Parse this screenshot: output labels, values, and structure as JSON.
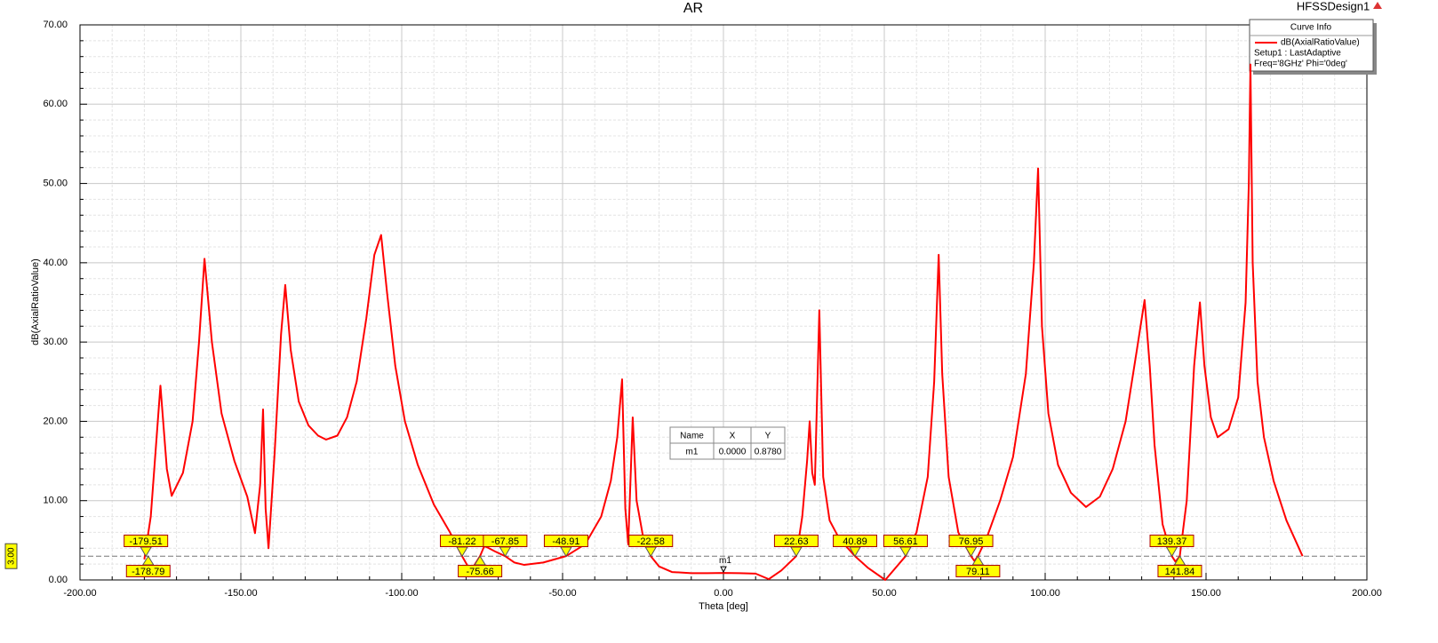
{
  "chart_data": {
    "type": "line",
    "title": "AR",
    "design_name": "HFSSDesign1",
    "x_label": "Theta [deg]",
    "y_label": "dB(AxialRatioValue)",
    "xlim": [
      -200,
      200
    ],
    "ylim": [
      0,
      70
    ],
    "xticks": [
      {
        "value": -200,
        "label": "-200.00"
      },
      {
        "value": -150,
        "label": "-150.00"
      },
      {
        "value": -100,
        "label": "-100.00"
      },
      {
        "value": -50,
        "label": "-50.00"
      },
      {
        "value": 0,
        "label": "0.00"
      },
      {
        "value": 50,
        "label": "50.00"
      },
      {
        "value": 100,
        "label": "100.00"
      },
      {
        "value": 150,
        "label": "150.00"
      },
      {
        "value": 200,
        "label": "200.00"
      }
    ],
    "yticks": [
      {
        "value": 0,
        "label": "0.00"
      },
      {
        "value": 10,
        "label": "10.00"
      },
      {
        "value": 20,
        "label": "20.00"
      },
      {
        "value": 30,
        "label": "30.00"
      },
      {
        "value": 40,
        "label": "40.00"
      },
      {
        "value": 50,
        "label": "50.00"
      },
      {
        "value": 60,
        "label": "60.00"
      },
      {
        "value": 70,
        "label": "70.00"
      }
    ],
    "grid": true,
    "legend_title": "Curve Info",
    "legend_lines": [
      "Setup1 : LastAdaptive",
      "Freq='8GHz' Phi='0deg'"
    ],
    "x": [
      -180,
      -178,
      -175,
      -173,
      -171.5,
      -168,
      -165,
      -163,
      -161.3,
      -159,
      -156,
      -152,
      -148,
      -145.6,
      -144,
      -143.1,
      -142.3,
      -141.4,
      -139.5,
      -137.5,
      -136.2,
      -134.5,
      -132,
      -129,
      -126,
      -123.5,
      -120,
      -117,
      -114,
      -111,
      -108.5,
      -106.4,
      -104.5,
      -102,
      -99,
      -95,
      -90,
      -85,
      -81.22,
      -79,
      -77.5,
      -75.66,
      -74.3,
      -71,
      -67.85,
      -65,
      -61.9,
      -56,
      -48.91,
      -43,
      -38,
      -35,
      -33,
      -31.5,
      -30.5,
      -29.6,
      -28.2,
      -27,
      -25,
      -22.58,
      -20,
      -16,
      -10,
      -5,
      0,
      5,
      10,
      14.1,
      18,
      22.63,
      24.5,
      26,
      26.8,
      27.6,
      28.4,
      29.8,
      31,
      33,
      36,
      40.89,
      45,
      50.3,
      56.61,
      60,
      63.5,
      65.5,
      66.9,
      68,
      70,
      73,
      76.95,
      78,
      79.11,
      82,
      86,
      90,
      94,
      96.5,
      97.8,
      99,
      101,
      104,
      108,
      112.7,
      117,
      121,
      125,
      128.5,
      130.9,
      132.5,
      134,
      136.5,
      139.37,
      140.5,
      141.84,
      144,
      146.3,
      148.1,
      149.5,
      151.5,
      153.6,
      157,
      160,
      162.3,
      163.3,
      163.8,
      164.5,
      166,
      168,
      171,
      175,
      180
    ],
    "series": [
      {
        "name": "dB(AxialRatioValue)",
        "color": "#ff0000",
        "values": [
          2.6,
          8,
          24.5,
          14,
          10.6,
          13.5,
          20,
          30,
          40.5,
          30,
          21,
          15,
          10.5,
          5.9,
          12,
          21.5,
          9,
          4,
          16,
          31,
          37.2,
          29,
          22.5,
          19.5,
          18.2,
          17.7,
          18.2,
          20.5,
          25,
          33,
          41,
          43.5,
          36,
          27,
          20,
          14.5,
          9.5,
          6,
          3,
          1.4,
          1.8,
          3,
          4.3,
          3.6,
          3,
          2.2,
          1.9,
          2.2,
          3,
          4.5,
          8,
          12.5,
          18,
          25.3,
          9,
          4.5,
          20.5,
          10,
          5.5,
          3,
          1.7,
          1,
          0.85,
          0.85,
          0.88,
          0.85,
          0.8,
          0.1,
          1.2,
          3,
          8,
          15,
          20,
          13.5,
          12,
          34,
          13,
          7.5,
          5.2,
          3,
          1.5,
          0,
          3,
          6,
          13,
          25,
          41,
          26,
          13,
          6,
          3,
          2.4,
          3,
          5.5,
          10,
          15.5,
          26,
          40,
          51.9,
          32,
          21,
          14.5,
          11,
          9.2,
          10.5,
          14,
          20,
          29,
          35.3,
          27,
          17,
          7,
          3,
          2.3,
          3,
          10,
          27,
          35,
          27,
          20.5,
          18,
          19,
          23,
          35,
          50,
          65,
          40,
          25,
          18,
          12.5,
          7.5,
          3
        ]
      }
    ],
    "reference_line": {
      "value": 3,
      "label": "3.00"
    },
    "markers": [
      -179.51,
      -178.79,
      -81.22,
      -75.66,
      -67.85,
      -48.91,
      -22.58,
      22.63,
      40.89,
      56.61,
      76.95,
      79.11,
      139.37,
      141.84
    ],
    "m1": {
      "name": "m1",
      "x": 0,
      "y": 0.878
    },
    "marker_table": {
      "headers": [
        "Name",
        "X",
        "Y"
      ],
      "rows": [
        [
          "m1",
          "0.0000",
          "0.8780"
        ]
      ]
    }
  }
}
